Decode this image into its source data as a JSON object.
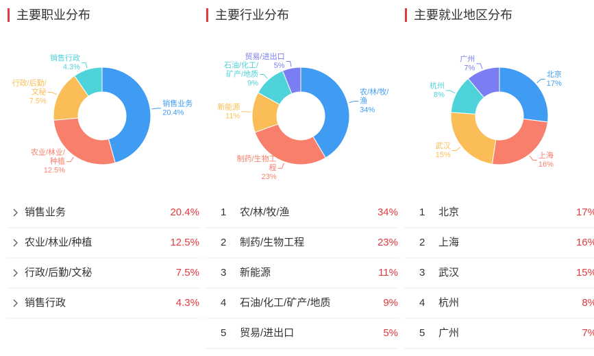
{
  "chart_data": [
    {
      "type": "pie",
      "title": "主要职业分布",
      "categories": [
        "销售业务",
        "农业/林业/种植",
        "行政/后勤/文秘",
        "销售行政"
      ],
      "values": [
        20.4,
        12.5,
        7.5,
        4.3
      ],
      "value_labels": [
        "20.4%",
        "12.5%",
        "7.5%",
        "4.3%"
      ],
      "colors": [
        "#3f9cf2",
        "#f77f6c",
        "#fbbd57",
        "#4fd3da"
      ]
    },
    {
      "type": "pie",
      "title": "主要行业分布",
      "categories": [
        "农/林/牧/渔",
        "制药/生物工程",
        "新能源",
        "石油/化工/矿产/地质",
        "贸易/进出口"
      ],
      "values": [
        34,
        23,
        11,
        9,
        5
      ],
      "value_labels": [
        "34%",
        "23%",
        "11%",
        "9%",
        "5%"
      ],
      "colors": [
        "#3f9cf2",
        "#f77f6c",
        "#fbbd57",
        "#4fd3da",
        "#7b7df2"
      ],
      "ranks": [
        1,
        2,
        3,
        4,
        5
      ]
    },
    {
      "type": "pie",
      "title": "主要就业地区分布",
      "categories": [
        "北京",
        "上海",
        "武汉",
        "杭州",
        "广州"
      ],
      "values": [
        17,
        16,
        15,
        8,
        7
      ],
      "value_labels": [
        "17%",
        "16%",
        "15%",
        "8%",
        "7%"
      ],
      "colors": [
        "#3f9cf2",
        "#f77f6c",
        "#fbbd57",
        "#4fd3da",
        "#7b7df2"
      ],
      "ranks": [
        1,
        2,
        3,
        4,
        5
      ]
    }
  ]
}
